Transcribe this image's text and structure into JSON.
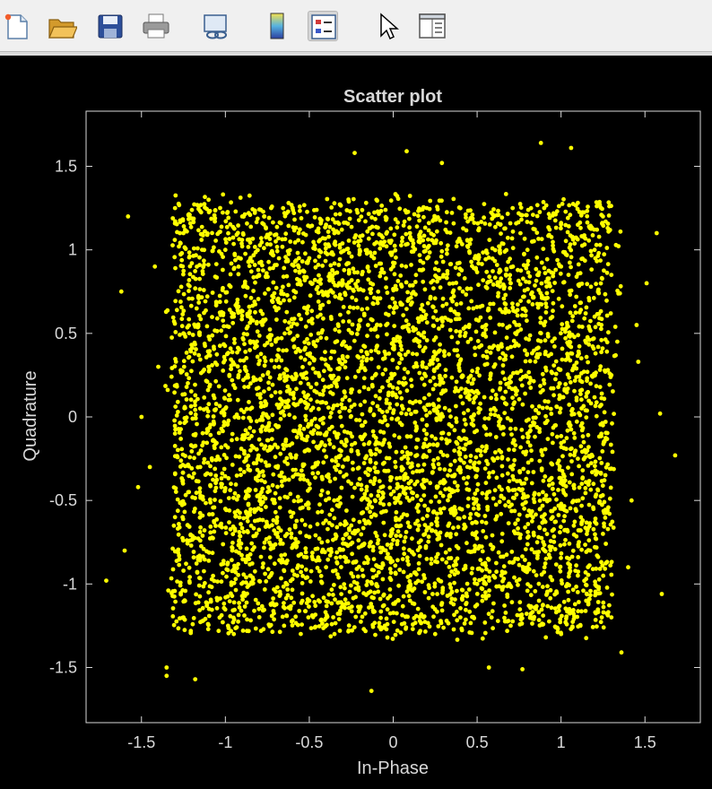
{
  "toolbar": {
    "buttons": [
      {
        "icon": "new-figure-icon"
      },
      {
        "icon": "open-folder-icon"
      },
      {
        "icon": "save-icon"
      },
      {
        "icon": "print-icon"
      },
      {
        "icon": "link-plot-icon"
      },
      {
        "icon": "colorbar-icon"
      },
      {
        "icon": "legend-icon"
      },
      {
        "icon": "pointer-icon"
      },
      {
        "icon": "property-inspector-icon"
      }
    ]
  },
  "colors": {
    "background": "#000000",
    "axes_background": "#000000",
    "axes_color": "#d9d9d9",
    "marker": "#ffff00",
    "toolbar": "#f0f0f0"
  },
  "chart_data": {
    "type": "scatter",
    "title": "Scatter plot",
    "xlabel": "In-Phase",
    "ylabel": "Quadrature",
    "xlim": [
      -1.83,
      1.83
    ],
    "ylim": [
      -1.83,
      1.83
    ],
    "xticks": [
      -1.5,
      -1,
      -0.5,
      0,
      0.5,
      1,
      1.5
    ],
    "yticks": [
      -1.5,
      -1,
      -0.5,
      0,
      0.5,
      1,
      1.5
    ],
    "xtick_labels": [
      "-1.5",
      "-1",
      "-0.5",
      "0",
      "0.5",
      "1",
      "1.5"
    ],
    "ytick_labels": [
      "-1.5",
      "-1",
      "-0.5",
      "0",
      "0.5",
      "1",
      "1.5"
    ],
    "grid": false,
    "marker_color": "#ffff00",
    "distribution_note_points": "approx. uniform cloud within [-1.3,1.3] with outliers up to ±1.7",
    "points": [
      [
        -1.71,
        -0.98
      ],
      [
        -1.6,
        -0.8
      ],
      [
        -1.58,
        1.2
      ],
      [
        -1.62,
        0.75
      ],
      [
        -1.52,
        -0.42
      ],
      [
        -1.5,
        0.0
      ],
      [
        1.68,
        -0.23
      ],
      [
        1.6,
        -1.06
      ],
      [
        1.59,
        0.02
      ],
      [
        1.57,
        1.1
      ],
      [
        1.51,
        0.8
      ],
      [
        1.46,
        0.33
      ],
      [
        -1.35,
        -1.5
      ],
      [
        -1.35,
        -1.55
      ],
      [
        -1.18,
        -1.57
      ],
      [
        -0.13,
        -1.64
      ],
      [
        0.88,
        1.64
      ],
      [
        1.06,
        1.61
      ],
      [
        0.08,
        1.59
      ],
      [
        -0.23,
        1.58
      ],
      [
        0.29,
        1.52
      ],
      [
        0.77,
        -1.51
      ],
      [
        0.57,
        -1.5
      ],
      [
        1.36,
        -1.41
      ],
      [
        -1.3,
        1.25
      ],
      [
        -1.25,
        1.1
      ],
      [
        -1.2,
        0.92
      ],
      [
        -1.1,
        1.3
      ],
      [
        -1.0,
        1.0
      ],
      [
        -0.9,
        1.2
      ],
      [
        -0.8,
        0.85
      ],
      [
        -0.7,
        1.05
      ],
      [
        -0.6,
        1.25
      ],
      [
        -0.5,
        0.95
      ],
      [
        -0.4,
        1.15
      ],
      [
        -0.3,
        0.8
      ],
      [
        -0.2,
        1.0
      ],
      [
        -0.1,
        1.3
      ],
      [
        0.0,
        0.9
      ],
      [
        0.1,
        1.1
      ],
      [
        0.2,
        1.25
      ],
      [
        0.3,
        0.85
      ],
      [
        0.4,
        1.05
      ],
      [
        0.5,
        0.95
      ],
      [
        0.6,
        1.2
      ],
      [
        0.7,
        0.8
      ],
      [
        0.8,
        1.0
      ],
      [
        0.9,
        1.25
      ],
      [
        1.0,
        0.9
      ],
      [
        1.1,
        1.15
      ],
      [
        1.2,
        1.0
      ],
      [
        1.3,
        0.85
      ],
      [
        1.25,
        1.2
      ],
      [
        -1.25,
        0.5
      ],
      [
        -1.1,
        0.3
      ],
      [
        -0.95,
        0.6
      ],
      [
        -0.85,
        0.2
      ],
      [
        -0.7,
        0.45
      ],
      [
        -0.55,
        0.1
      ],
      [
        -0.45,
        0.6
      ],
      [
        -0.3,
        0.35
      ],
      [
        -0.15,
        0.55
      ],
      [
        0.0,
        0.25
      ],
      [
        0.15,
        0.5
      ],
      [
        0.3,
        0.15
      ],
      [
        0.45,
        0.65
      ],
      [
        0.6,
        0.3
      ],
      [
        0.75,
        0.55
      ],
      [
        0.9,
        0.2
      ],
      [
        1.05,
        0.45
      ],
      [
        1.2,
        0.6
      ],
      [
        1.3,
        0.25
      ],
      [
        -1.3,
        -0.1
      ],
      [
        -1.15,
        -0.3
      ],
      [
        -1.0,
        0.05
      ],
      [
        -0.85,
        -0.2
      ],
      [
        -0.7,
        -0.05
      ],
      [
        -0.55,
        -0.35
      ],
      [
        -0.4,
        -0.1
      ],
      [
        -0.25,
        -0.4
      ],
      [
        -0.1,
        -0.15
      ],
      [
        0.05,
        -0.3
      ],
      [
        0.2,
        -0.05
      ],
      [
        0.35,
        -0.45
      ],
      [
        0.5,
        -0.2
      ],
      [
        0.65,
        -0.35
      ],
      [
        0.8,
        -0.1
      ],
      [
        0.95,
        -0.4
      ],
      [
        1.1,
        -0.25
      ],
      [
        1.25,
        -0.05
      ],
      [
        -1.3,
        -0.6
      ],
      [
        -1.15,
        -0.85
      ],
      [
        -1.0,
        -0.55
      ],
      [
        -0.85,
        -0.95
      ],
      [
        -0.7,
        -0.7
      ],
      [
        -0.55,
        -0.5
      ],
      [
        -0.4,
        -0.9
      ],
      [
        -0.25,
        -0.65
      ],
      [
        -0.1,
        -0.95
      ],
      [
        0.05,
        -0.6
      ],
      [
        0.2,
        -0.85
      ],
      [
        0.35,
        -0.55
      ],
      [
        0.5,
        -1.0
      ],
      [
        0.65,
        -0.7
      ],
      [
        0.8,
        -0.9
      ],
      [
        0.95,
        -0.6
      ],
      [
        1.1,
        -0.95
      ],
      [
        1.25,
        -0.7
      ],
      [
        -1.25,
        -1.2
      ],
      [
        -1.1,
        -1.05
      ],
      [
        -0.95,
        -1.3
      ],
      [
        -0.8,
        -1.15
      ],
      [
        -0.65,
        -1.25
      ],
      [
        -0.5,
        -1.1
      ],
      [
        -0.35,
        -1.3
      ],
      [
        -0.2,
        -1.15
      ],
      [
        -0.05,
        -1.25
      ],
      [
        0.1,
        -1.1
      ],
      [
        0.25,
        -1.3
      ],
      [
        0.4,
        -1.2
      ],
      [
        0.55,
        -1.05
      ],
      [
        0.7,
        -1.25
      ],
      [
        0.85,
        -1.15
      ],
      [
        1.0,
        -1.3
      ],
      [
        1.15,
        -1.1
      ],
      [
        1.3,
        -1.2
      ],
      [
        -1.4,
        0.3
      ],
      [
        -1.45,
        -0.3
      ],
      [
        1.42,
        -0.5
      ],
      [
        1.45,
        0.55
      ],
      [
        -1.42,
        0.9
      ],
      [
        1.4,
        -0.9
      ]
    ]
  }
}
